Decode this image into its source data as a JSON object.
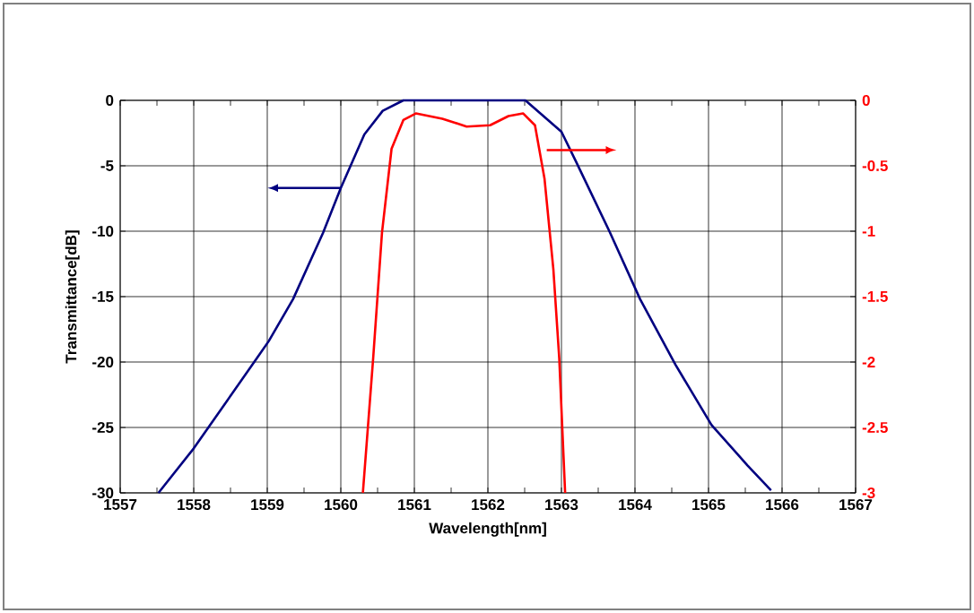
{
  "chart_data": {
    "type": "line",
    "xlabel": "Wavelength[nm]",
    "ylabel": "Transmittance[dB]",
    "xlim": [
      1557,
      1567
    ],
    "xticks": [
      1557,
      1558,
      1559,
      1560,
      1561,
      1562,
      1563,
      1564,
      1565,
      1566,
      1567
    ],
    "ylim": [
      -30,
      0
    ],
    "yticks": [
      -30,
      -25,
      -20,
      -15,
      -10,
      -5,
      0
    ],
    "y2lim": [
      -3,
      0
    ],
    "y2ticks": [
      -3,
      -2.5,
      -2,
      -1.5,
      -1,
      -0.5,
      0
    ],
    "grid": true,
    "marker": "none",
    "line_style": "solid",
    "series": [
      {
        "color": "#000080",
        "x": [
          1557.52,
          1558.0,
          1558.86,
          1559.02,
          1559.35,
          1559.76,
          1560.0,
          1560.32,
          1560.57,
          1560.85,
          1561.5,
          1562.51,
          1563.0,
          1563.2,
          1563.66,
          1564.07,
          1564.55,
          1565.04,
          1565.53,
          1565.85
        ],
        "values": [
          -30,
          -26.6,
          -19.7,
          -18.4,
          -15.2,
          -10.1,
          -6.7,
          -2.6,
          -0.8,
          0,
          0,
          0,
          -2.4,
          -4.7,
          -10.1,
          -15.2,
          -20.2,
          -24.8,
          -27.9,
          -29.8
        ]
      },
      {
        "color": "#ff0000",
        "axis": "y2",
        "x": [
          1560.3,
          1560.44,
          1560.56,
          1560.69,
          1560.85,
          1561.02,
          1561.38,
          1561.71,
          1562.03,
          1562.28,
          1562.48,
          1562.64,
          1562.77,
          1562.89,
          1562.97,
          1563.05
        ],
        "values": [
          -3,
          -1.97,
          -1.01,
          -0.37,
          -0.15,
          -0.1,
          -0.14,
          -0.2,
          -0.19,
          -0.12,
          -0.1,
          -0.19,
          -0.6,
          -1.29,
          -1.97,
          -3
        ]
      }
    ]
  }
}
